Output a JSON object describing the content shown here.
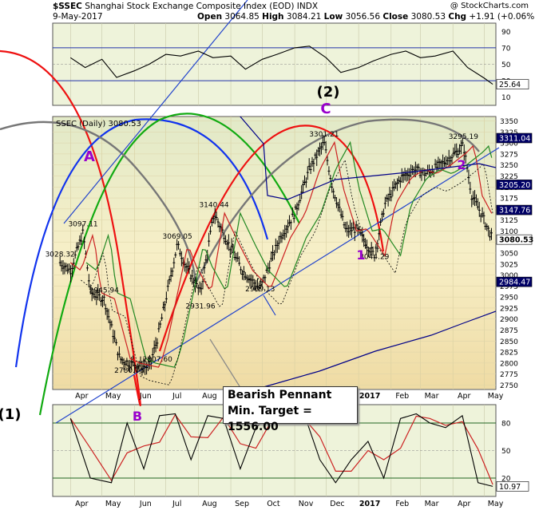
{
  "header": {
    "symbol": "$SSEC",
    "name": "Shanghai Stock Exchange Composite Index (EOD)",
    "exchange": "INDX",
    "watermark": "@ StockCharts.com",
    "date": "9-May-2017",
    "open_label": "Open",
    "open": "3064.85",
    "high_label": "High",
    "high": "3084.21",
    "low_label": "Low",
    "low": "3056.56",
    "close_label": "Close",
    "close": "3080.53",
    "chg_label": "Chg",
    "chg": "+1.91 (+0.06%)"
  },
  "legend_inline": "SSEC (Daily) 3080.53",
  "callout": {
    "title": "Bearish Pennant",
    "target": "Min. Target = 1556.00"
  },
  "wave_labels": [
    {
      "text": "A",
      "color": "#9900cc"
    },
    {
      "text": "B",
      "color": "#9900cc"
    },
    {
      "text": "C",
      "color": "#9900cc"
    },
    {
      "text": "(2)",
      "color": "#000000"
    },
    {
      "text": "1",
      "color": "#9900cc"
    },
    {
      "text": "2",
      "color": "#9900cc"
    },
    {
      "text": "(1)",
      "color": "#000000"
    }
  ],
  "colors": {
    "price_bg": "#f7efc7",
    "indicator_bg": "#eef3da",
    "price": "#000000",
    "ma_red": "#cc2222",
    "ma_green": "#228822",
    "ma_blue": "#000088",
    "cycle_red": "#ee1111",
    "cycle_green": "#11aa11",
    "cycle_blue": "#1133ee",
    "cycle_gray": "#777777",
    "trendline": "#2244cc",
    "label_box": "#000066"
  },
  "chart_data": [
    {
      "type": "line",
      "panel": "rsi",
      "yaxis_ticks": [
        "90",
        "70",
        "50",
        "30",
        "10"
      ],
      "ylim": [
        0,
        100
      ],
      "reference_lines": [
        70,
        50,
        30
      ],
      "last_value": "25.64",
      "x": [
        "2016-04-01",
        "2016-04-15",
        "2016-05-01",
        "2016-05-15",
        "2016-06-01",
        "2016-06-15",
        "2016-07-01",
        "2016-07-15",
        "2016-08-01",
        "2016-08-15",
        "2016-09-01",
        "2016-09-15",
        "2016-10-01",
        "2016-10-15",
        "2016-11-01",
        "2016-11-15",
        "2016-12-01",
        "2016-12-15",
        "2017-01-01",
        "2017-01-15",
        "2017-02-01",
        "2017-02-15",
        "2017-03-01",
        "2017-03-15",
        "2017-04-01",
        "2017-04-15",
        "2017-05-01",
        "2017-05-09"
      ],
      "values": [
        58,
        46,
        56,
        34,
        42,
        50,
        62,
        60,
        66,
        58,
        60,
        44,
        56,
        62,
        70,
        72,
        58,
        40,
        46,
        54,
        62,
        66,
        58,
        60,
        66,
        46,
        33,
        25.64
      ]
    },
    {
      "type": "candlestick",
      "panel": "price",
      "title": "SSEC (Daily) 3080.53",
      "yaxis_ticks": [
        "3350",
        "3325",
        "3300",
        "3275",
        "3250",
        "3225",
        "3200",
        "3175",
        "3150",
        "3125",
        "3100",
        "3075",
        "3050",
        "3025",
        "3000",
        "2975",
        "2950",
        "2925",
        "2900",
        "2875",
        "2850",
        "2825",
        "2800",
        "2775",
        "2750"
      ],
      "ylim": [
        2740,
        3360
      ],
      "right_tags": [
        "3311.04",
        "3205.20",
        "3147.76",
        "3080.53",
        "2984.47"
      ],
      "peak_labels": [
        "3028.32",
        "3097.11",
        "2945.94",
        "2780.76",
        "2807.60",
        "3069.05",
        "2931.96",
        "3140.44",
        "2969.13",
        "3301.21",
        "3044.29",
        "3295.19"
      ],
      "x": [
        "2016-03-22",
        "2016-04-01",
        "2016-04-13",
        "2016-04-20",
        "2016-05-03",
        "2016-05-18",
        "2016-05-27",
        "2016-06-15",
        "2016-06-23",
        "2016-07-12",
        "2016-07-20",
        "2016-08-03",
        "2016-08-16",
        "2016-08-30",
        "2016-09-12",
        "2016-09-29",
        "2016-10-18",
        "2016-11-01",
        "2016-11-15",
        "2016-11-29",
        "2016-12-07",
        "2016-12-20",
        "2016-12-30",
        "2017-01-16",
        "2017-01-26",
        "2017-02-10",
        "2017-02-23",
        "2017-03-06",
        "2017-03-20",
        "2017-04-05",
        "2017-04-11",
        "2017-04-19",
        "2017-04-28",
        "2017-05-09"
      ],
      "close": [
        3028.32,
        3010,
        3097.11,
        2960,
        2945.94,
        2810,
        2800,
        2790,
        2855,
        3069.05,
        3020,
        2960,
        3140.44,
        3070,
        3010,
        2969.13,
        3085,
        3140,
        3240,
        3301.21,
        3200,
        3100,
        3105,
        3044.29,
        3160,
        3220,
        3240,
        3230,
        3250,
        3280,
        3295.19,
        3180,
        3140,
        3080.53
      ],
      "overlays": [
        {
          "name": "",
          "type": "moving_average",
          "color": "#cc2222"
        },
        {
          "name": "",
          "type": "moving_average",
          "color": "#228822"
        },
        {
          "name": "",
          "type": "moving_average",
          "color": "#000088"
        },
        {
          "name": "",
          "type": "bollinger_lower",
          "color": "#000000"
        }
      ]
    },
    {
      "type": "line",
      "panel": "stochastic",
      "yaxis_ticks": [
        "80",
        "50",
        "20"
      ],
      "ylim": [
        0,
        100
      ],
      "reference_lines": [
        80,
        50,
        20
      ],
      "last_value": "10.97",
      "x": [
        "2016-04-01",
        "2016-04-20",
        "2016-05-10",
        "2016-05-25",
        "2016-06-10",
        "2016-06-25",
        "2016-07-10",
        "2016-07-25",
        "2016-08-10",
        "2016-08-25",
        "2016-09-10",
        "2016-09-25",
        "2016-10-10",
        "2016-10-25",
        "2016-11-10",
        "2016-11-25",
        "2016-12-10",
        "2016-12-25",
        "2017-01-10",
        "2017-01-25",
        "2017-02-10",
        "2017-02-25",
        "2017-03-10",
        "2017-03-25",
        "2017-04-10",
        "2017-04-25",
        "2017-05-09"
      ],
      "values": [
        85,
        20,
        15,
        80,
        30,
        88,
        90,
        40,
        88,
        85,
        30,
        75,
        90,
        80,
        90,
        40,
        15,
        40,
        60,
        20,
        85,
        90,
        80,
        75,
        88,
        15,
        10.97
      ]
    }
  ],
  "x_axis_labels": [
    "Apr",
    "May",
    "Jun",
    "Jul",
    "Aug",
    "Sep",
    "Oct",
    "Nov",
    "Dec",
    "2017",
    "Feb",
    "Mar",
    "Apr",
    "May"
  ]
}
